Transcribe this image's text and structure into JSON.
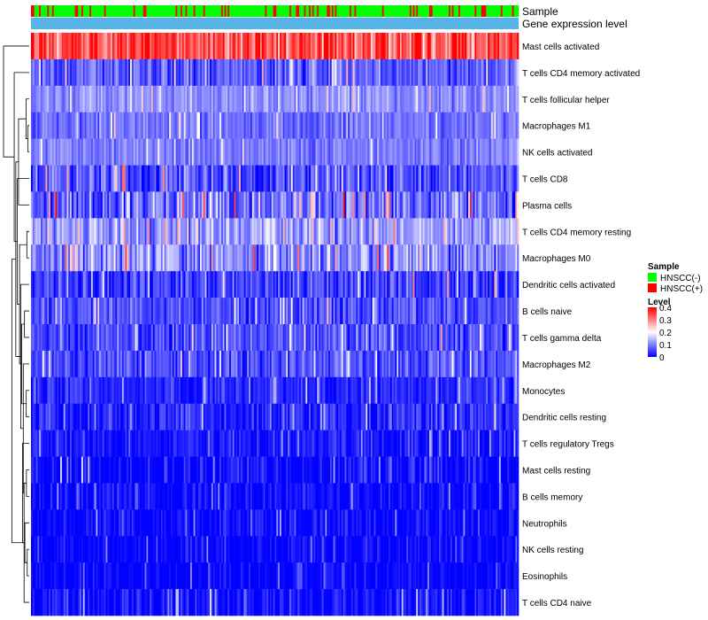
{
  "chart_data": {
    "type": "heatmap",
    "title": "",
    "n_samples": 300,
    "color_scale": {
      "min": 0,
      "max": 0.4,
      "stops": [
        "#0000ff",
        "#ffffff",
        "#ff0000"
      ],
      "stop_values": [
        0,
        0.2,
        0.4
      ]
    },
    "annotation_tracks": [
      {
        "name": "Sample",
        "type": "categorical"
      },
      {
        "name": "Gene expression level",
        "type": "continuous",
        "color": "#58b4e6"
      }
    ],
    "sample_groups": [
      {
        "label": "HNSCC(-)",
        "color": "#00ff00",
        "share": 0.82
      },
      {
        "label": "HNSCC(+)",
        "color": "#ff0000",
        "share": 0.18
      }
    ],
    "rows": [
      {
        "label": "Mast cells activated",
        "mean": 0.34,
        "spread": 0.08
      },
      {
        "label": "T cells CD4 memory activated",
        "mean": 0.07,
        "spread": 0.06
      },
      {
        "label": "T cells follicular helper",
        "mean": 0.11,
        "spread": 0.04
      },
      {
        "label": "Macrophages M1",
        "mean": 0.09,
        "spread": 0.04
      },
      {
        "label": "NK cells activated",
        "mean": 0.1,
        "spread": 0.04
      },
      {
        "label": "T cells CD8",
        "mean": 0.06,
        "spread": 0.07
      },
      {
        "label": "Plasma cells",
        "mean": 0.08,
        "spread": 0.09
      },
      {
        "label": "T cells CD4 memory resting",
        "mean": 0.12,
        "spread": 0.06
      },
      {
        "label": "Macrophages M0",
        "mean": 0.11,
        "spread": 0.08
      },
      {
        "label": "Dendritic cells activated",
        "mean": 0.05,
        "spread": 0.07
      },
      {
        "label": "B cells naive",
        "mean": 0.06,
        "spread": 0.05
      },
      {
        "label": "T cells gamma delta",
        "mean": 0.06,
        "spread": 0.06
      },
      {
        "label": "Macrophages M2",
        "mean": 0.06,
        "spread": 0.05
      },
      {
        "label": "Monocytes",
        "mean": 0.03,
        "spread": 0.04
      },
      {
        "label": "Dendritic cells resting",
        "mean": 0.03,
        "spread": 0.05
      },
      {
        "label": "T cells regulatory  Tregs",
        "mean": 0.02,
        "spread": 0.04
      },
      {
        "label": "Mast cells resting",
        "mean": 0.005,
        "spread": 0.05
      },
      {
        "label": "B cells memory",
        "mean": 0.005,
        "spread": 0.04
      },
      {
        "label": "Neutrophils",
        "mean": 0.005,
        "spread": 0.04
      },
      {
        "label": "NK cells resting",
        "mean": 0.003,
        "spread": 0.03
      },
      {
        "label": "Eosinophils",
        "mean": 0.002,
        "spread": 0.03
      },
      {
        "label": "T cells CD4 naive",
        "mean": 0.01,
        "spread": 0.05
      }
    ],
    "dendrogram": {
      "side": "left",
      "merges": [
        [
          3,
          4,
          0.6
        ],
        [
          7,
          8,
          1.2
        ],
        [
          2,
          22,
          1.6
        ],
        [
          13,
          14,
          1.5
        ],
        [
          19,
          20,
          1.0
        ],
        [
          16,
          17,
          1.4
        ],
        [
          18,
          26,
          2.2
        ],
        [
          27,
          21,
          2.6
        ],
        [
          15,
          28,
          3.4
        ],
        [
          10,
          11,
          2.4
        ],
        [
          30,
          12,
          3.0
        ],
        [
          31,
          25,
          3.8
        ],
        [
          9,
          32,
          4.3
        ],
        [
          23,
          33,
          4.9
        ],
        [
          6,
          24,
          5.4
        ],
        [
          5,
          35,
          6.0
        ],
        [
          34,
          36,
          6.8
        ],
        [
          1,
          37,
          7.6
        ],
        [
          29,
          38,
          8.8
        ],
        [
          0,
          39,
          13.0
        ]
      ]
    },
    "legend": {
      "sample_title": "Sample",
      "sample_items": [
        {
          "label": "HNSCC(-)",
          "color": "#00ff00"
        },
        {
          "label": "HNSCC(+)",
          "color": "#ff0000"
        }
      ],
      "level_title": "Level",
      "level_ticks": [
        "0.4",
        "0.3",
        "0.2",
        "0.1",
        "0"
      ]
    }
  }
}
